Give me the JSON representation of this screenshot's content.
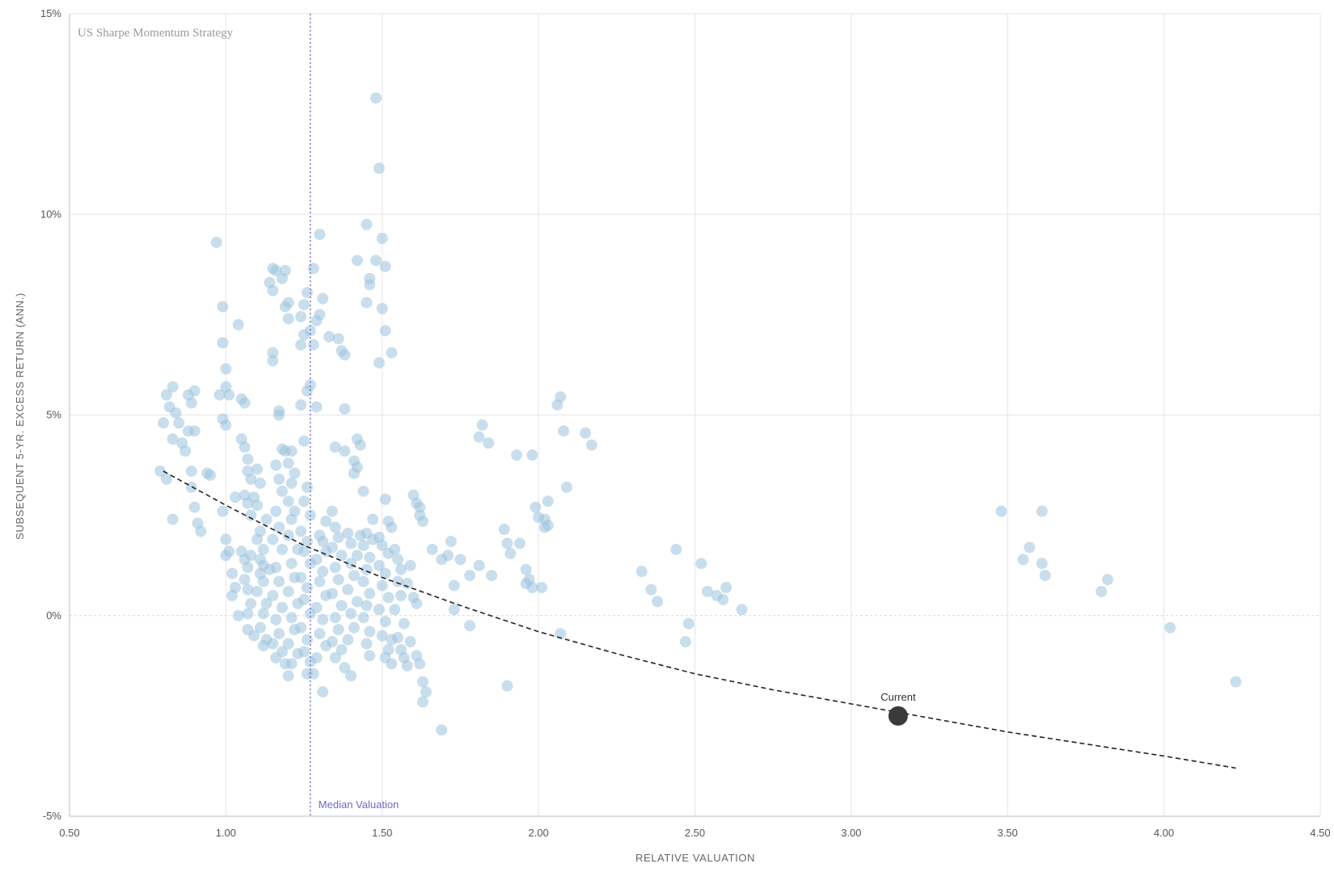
{
  "chart_data": {
    "type": "scatter",
    "title": "US Sharpe Momentum Strategy",
    "xlabel": "RELATIVE VALUATION",
    "ylabel": "SUBSEQUENT 5-YR. EXCESS RETURN (ANN.)",
    "xlim": [
      0.5,
      4.5
    ],
    "ylim": [
      -5,
      15
    ],
    "x_ticks": [
      "0.50",
      "1.00",
      "1.50",
      "2.00",
      "2.50",
      "3.00",
      "3.50",
      "4.00",
      "4.50"
    ],
    "y_ticks": [
      "-5%",
      "0%",
      "5%",
      "10%",
      "15%"
    ],
    "grid": true,
    "colors": {
      "points": "#9cc3dc",
      "fit_line": "#222222",
      "median_line": "#6f6cc4",
      "current_point": "#3a3a3a",
      "grid": "#e5e5e5",
      "zero_line": "#d9d9d9"
    },
    "median": {
      "label": "Median Valuation",
      "x": 1.27
    },
    "current": {
      "label": "Current",
      "x": 3.15,
      "y": -2.5
    },
    "fit_curve": [
      [
        0.8,
        3.6
      ],
      [
        1.0,
        2.75
      ],
      [
        1.25,
        1.75
      ],
      [
        1.5,
        0.95
      ],
      [
        1.75,
        0.25
      ],
      [
        2.0,
        -0.4
      ],
      [
        2.25,
        -0.95
      ],
      [
        2.5,
        -1.45
      ],
      [
        2.75,
        -1.85
      ],
      [
        3.0,
        -2.2
      ],
      [
        3.25,
        -2.55
      ],
      [
        3.5,
        -2.9
      ],
      [
        3.75,
        -3.2
      ],
      [
        4.0,
        -3.5
      ],
      [
        4.23,
        -3.8
      ]
    ],
    "points": [
      [
        0.79,
        3.6
      ],
      [
        0.81,
        3.4
      ],
      [
        0.8,
        4.8
      ],
      [
        0.81,
        5.5
      ],
      [
        0.82,
        5.2
      ],
      [
        0.83,
        5.7
      ],
      [
        0.84,
        5.05
      ],
      [
        0.83,
        4.4
      ],
      [
        0.85,
        4.8
      ],
      [
        0.86,
        4.3
      ],
      [
        0.87,
        4.1
      ],
      [
        0.88,
        4.6
      ],
      [
        0.88,
        5.5
      ],
      [
        0.89,
        5.3
      ],
      [
        0.9,
        5.6
      ],
      [
        0.9,
        4.6
      ],
      [
        0.89,
        3.6
      ],
      [
        0.89,
        3.2
      ],
      [
        0.9,
        2.7
      ],
      [
        0.91,
        2.3
      ],
      [
        0.92,
        2.1
      ],
      [
        0.83,
        2.4
      ],
      [
        0.94,
        3.55
      ],
      [
        0.95,
        3.5
      ],
      [
        0.97,
        9.3
      ],
      [
        0.99,
        7.7
      ],
      [
        0.99,
        6.8
      ],
      [
        1.0,
        6.15
      ],
      [
        1.0,
        5.7
      ],
      [
        1.01,
        5.5
      ],
      [
        0.98,
        5.5
      ],
      [
        0.99,
        4.9
      ],
      [
        1.0,
        4.75
      ],
      [
        0.99,
        2.6
      ],
      [
        1.0,
        1.9
      ],
      [
        1.01,
        1.6
      ],
      [
        1.0,
        1.5
      ],
      [
        1.02,
        1.05
      ],
      [
        1.03,
        0.7
      ],
      [
        1.02,
        0.5
      ],
      [
        1.04,
        0.0
      ],
      [
        1.04,
        7.25
      ],
      [
        1.03,
        2.95
      ],
      [
        1.05,
        5.4
      ],
      [
        1.06,
        5.3
      ],
      [
        1.05,
        4.4
      ],
      [
        1.06,
        4.2
      ],
      [
        1.07,
        3.9
      ],
      [
        1.07,
        3.6
      ],
      [
        1.08,
        3.4
      ],
      [
        1.06,
        3.0
      ],
      [
        1.07,
        2.8
      ],
      [
        1.08,
        2.5
      ],
      [
        1.05,
        1.6
      ],
      [
        1.06,
        1.4
      ],
      [
        1.07,
        1.2
      ],
      [
        1.06,
        0.9
      ],
      [
        1.07,
        0.65
      ],
      [
        1.08,
        0.3
      ],
      [
        1.07,
        0.05
      ],
      [
        1.07,
        -0.35
      ],
      [
        1.09,
        -0.5
      ],
      [
        1.08,
        1.5
      ],
      [
        1.09,
        2.95
      ],
      [
        1.1,
        3.65
      ],
      [
        1.11,
        3.3
      ],
      [
        1.1,
        2.75
      ],
      [
        1.11,
        2.1
      ],
      [
        1.1,
        1.9
      ],
      [
        1.12,
        1.65
      ],
      [
        1.11,
        1.4
      ],
      [
        1.12,
        1.25
      ],
      [
        1.11,
        1.05
      ],
      [
        1.12,
        0.85
      ],
      [
        1.1,
        0.6
      ],
      [
        1.13,
        0.3
      ],
      [
        1.12,
        0.05
      ],
      [
        1.11,
        -0.3
      ],
      [
        1.13,
        -0.6
      ],
      [
        1.12,
        -0.75
      ],
      [
        1.14,
        1.15
      ],
      [
        1.13,
        2.4
      ],
      [
        1.14,
        8.3
      ],
      [
        1.15,
        8.1
      ],
      [
        1.15,
        8.65
      ],
      [
        1.16,
        8.6
      ],
      [
        1.15,
        6.55
      ],
      [
        1.15,
        6.35
      ],
      [
        1.17,
        5.1
      ],
      [
        1.17,
        5.0
      ],
      [
        1.16,
        3.75
      ],
      [
        1.18,
        4.15
      ],
      [
        1.19,
        4.1
      ],
      [
        1.17,
        3.4
      ],
      [
        1.18,
        3.1
      ],
      [
        1.16,
        2.6
      ],
      [
        1.17,
        2.2
      ],
      [
        1.15,
        1.9
      ],
      [
        1.18,
        1.65
      ],
      [
        1.16,
        1.2
      ],
      [
        1.17,
        0.85
      ],
      [
        1.15,
        0.5
      ],
      [
        1.18,
        0.2
      ],
      [
        1.16,
        -0.1
      ],
      [
        1.17,
        -0.45
      ],
      [
        1.15,
        -0.7
      ],
      [
        1.18,
        -0.9
      ],
      [
        1.16,
        -1.05
      ],
      [
        1.19,
        -1.2
      ],
      [
        1.18,
        8.4
      ],
      [
        1.19,
        8.6
      ],
      [
        1.2,
        7.8
      ],
      [
        1.19,
        7.7
      ],
      [
        1.2,
        7.4
      ],
      [
        1.21,
        4.1
      ],
      [
        1.2,
        3.8
      ],
      [
        1.22,
        3.55
      ],
      [
        1.21,
        3.3
      ],
      [
        1.2,
        2.85
      ],
      [
        1.22,
        2.6
      ],
      [
        1.21,
        2.4
      ],
      [
        1.2,
        2.0
      ],
      [
        1.23,
        1.65
      ],
      [
        1.21,
        1.3
      ],
      [
        1.22,
        0.95
      ],
      [
        1.2,
        0.6
      ],
      [
        1.23,
        0.3
      ],
      [
        1.21,
        -0.05
      ],
      [
        1.22,
        -0.35
      ],
      [
        1.2,
        -0.7
      ],
      [
        1.23,
        -0.95
      ],
      [
        1.21,
        -1.2
      ],
      [
        1.2,
        -1.5
      ],
      [
        1.24,
        7.45
      ],
      [
        1.25,
        7.0
      ],
      [
        1.24,
        6.75
      ],
      [
        1.26,
        8.05
      ],
      [
        1.25,
        7.75
      ],
      [
        1.26,
        5.6
      ],
      [
        1.27,
        5.75
      ],
      [
        1.24,
        5.25
      ],
      [
        1.25,
        4.35
      ],
      [
        1.26,
        3.2
      ],
      [
        1.25,
        2.85
      ],
      [
        1.27,
        2.5
      ],
      [
        1.24,
        2.1
      ],
      [
        1.26,
        1.85
      ],
      [
        1.25,
        1.6
      ],
      [
        1.27,
        1.3
      ],
      [
        1.24,
        0.95
      ],
      [
        1.26,
        0.7
      ],
      [
        1.25,
        0.4
      ],
      [
        1.27,
        0.05
      ],
      [
        1.24,
        -0.3
      ],
      [
        1.26,
        -0.6
      ],
      [
        1.25,
        -0.9
      ],
      [
        1.27,
        -1.15
      ],
      [
        1.26,
        -1.45
      ],
      [
        1.27,
        7.1
      ],
      [
        1.28,
        6.75
      ],
      [
        1.28,
        8.65
      ],
      [
        1.3,
        9.5
      ],
      [
        1.29,
        7.35
      ],
      [
        1.3,
        7.5
      ],
      [
        1.31,
        7.9
      ],
      [
        1.29,
        5.2
      ],
      [
        1.3,
        2.0
      ],
      [
        1.31,
        1.85
      ],
      [
        1.32,
        1.6
      ],
      [
        1.29,
        1.4
      ],
      [
        1.31,
        1.1
      ],
      [
        1.3,
        0.85
      ],
      [
        1.32,
        0.5
      ],
      [
        1.29,
        0.2
      ],
      [
        1.31,
        -0.1
      ],
      [
        1.3,
        -0.45
      ],
      [
        1.32,
        -0.75
      ],
      [
        1.29,
        -1.05
      ],
      [
        1.28,
        -1.45
      ],
      [
        1.31,
        -1.9
      ],
      [
        1.32,
        2.35
      ],
      [
        1.33,
        6.95
      ],
      [
        1.34,
        2.6
      ],
      [
        1.35,
        4.2
      ],
      [
        1.35,
        2.2
      ],
      [
        1.36,
        1.95
      ],
      [
        1.34,
        1.7
      ],
      [
        1.37,
        1.5
      ],
      [
        1.35,
        1.2
      ],
      [
        1.36,
        0.9
      ],
      [
        1.34,
        0.55
      ],
      [
        1.37,
        0.25
      ],
      [
        1.35,
        -0.05
      ],
      [
        1.36,
        -0.35
      ],
      [
        1.34,
        -0.65
      ],
      [
        1.37,
        -0.85
      ],
      [
        1.35,
        -1.05
      ],
      [
        1.36,
        6.9
      ],
      [
        1.37,
        6.6
      ],
      [
        1.38,
        6.5
      ],
      [
        1.38,
        5.15
      ],
      [
        1.38,
        4.1
      ],
      [
        1.39,
        2.05
      ],
      [
        1.4,
        1.8
      ],
      [
        1.41,
        3.85
      ],
      [
        1.42,
        3.7
      ],
      [
        1.41,
        3.55
      ],
      [
        1.42,
        4.4
      ],
      [
        1.43,
        4.25
      ],
      [
        1.4,
        1.3
      ],
      [
        1.41,
        1.0
      ],
      [
        1.39,
        0.65
      ],
      [
        1.42,
        0.35
      ],
      [
        1.4,
        0.05
      ],
      [
        1.41,
        -0.3
      ],
      [
        1.39,
        -0.6
      ],
      [
        1.38,
        -1.3
      ],
      [
        1.4,
        -1.5
      ],
      [
        1.42,
        8.85
      ],
      [
        1.43,
        2.0
      ],
      [
        1.42,
        1.5
      ],
      [
        1.44,
        3.1
      ],
      [
        1.45,
        2.05
      ],
      [
        1.44,
        1.75
      ],
      [
        1.46,
        1.45
      ],
      [
        1.45,
        1.15
      ],
      [
        1.44,
        0.85
      ],
      [
        1.46,
        0.55
      ],
      [
        1.45,
        0.25
      ],
      [
        1.44,
        -0.05
      ],
      [
        1.46,
        -0.4
      ],
      [
        1.45,
        -0.7
      ],
      [
        1.46,
        -1.0
      ],
      [
        1.45,
        9.75
      ],
      [
        1.46,
        8.4
      ],
      [
        1.46,
        8.25
      ],
      [
        1.45,
        7.8
      ],
      [
        1.47,
        2.4
      ],
      [
        1.47,
        1.9
      ],
      [
        1.48,
        12.9
      ],
      [
        1.49,
        11.15
      ],
      [
        1.48,
        8.85
      ],
      [
        1.5,
        9.4
      ],
      [
        1.51,
        8.7
      ],
      [
        1.5,
        7.65
      ],
      [
        1.51,
        7.1
      ],
      [
        1.49,
        6.3
      ],
      [
        1.53,
        6.55
      ],
      [
        1.51,
        2.9
      ],
      [
        1.52,
        2.35
      ],
      [
        1.53,
        2.2
      ],
      [
        1.49,
        1.95
      ],
      [
        1.5,
        1.75
      ],
      [
        1.52,
        1.55
      ],
      [
        1.49,
        1.25
      ],
      [
        1.51,
        1.05
      ],
      [
        1.5,
        0.75
      ],
      [
        1.52,
        0.45
      ],
      [
        1.49,
        0.15
      ],
      [
        1.51,
        -0.15
      ],
      [
        1.5,
        -0.5
      ],
      [
        1.53,
        -0.6
      ],
      [
        1.52,
        -0.85
      ],
      [
        1.51,
        -1.05
      ],
      [
        1.53,
        -1.2
      ],
      [
        1.54,
        1.65
      ],
      [
        1.55,
        1.4
      ],
      [
        1.56,
        1.15
      ],
      [
        1.55,
        0.85
      ],
      [
        1.56,
        0.5
      ],
      [
        1.54,
        0.15
      ],
      [
        1.57,
        -0.2
      ],
      [
        1.55,
        -0.55
      ],
      [
        1.56,
        -0.85
      ],
      [
        1.57,
        -1.05
      ],
      [
        1.58,
        -1.25
      ],
      [
        1.59,
        -0.65
      ],
      [
        1.58,
        0.8
      ],
      [
        1.59,
        1.25
      ],
      [
        1.6,
        3.0
      ],
      [
        1.61,
        2.8
      ],
      [
        1.62,
        2.7
      ],
      [
        1.63,
        2.35
      ],
      [
        1.62,
        2.5
      ],
      [
        1.61,
        0.3
      ],
      [
        1.6,
        0.45
      ],
      [
        1.61,
        -1.0
      ],
      [
        1.62,
        -1.2
      ],
      [
        1.63,
        -1.65
      ],
      [
        1.64,
        -1.9
      ],
      [
        1.63,
        -2.15
      ],
      [
        1.66,
        1.65
      ],
      [
        1.69,
        1.4
      ],
      [
        1.71,
        1.5
      ],
      [
        1.72,
        1.85
      ],
      [
        1.73,
        0.15
      ],
      [
        1.73,
        0.75
      ],
      [
        1.75,
        1.4
      ],
      [
        1.69,
        -2.85
      ],
      [
        1.78,
        -0.25
      ],
      [
        1.78,
        1.0
      ],
      [
        1.81,
        1.25
      ],
      [
        1.81,
        4.45
      ],
      [
        1.82,
        4.75
      ],
      [
        1.84,
        4.3
      ],
      [
        1.85,
        1.0
      ],
      [
        1.89,
        2.15
      ],
      [
        1.9,
        1.8
      ],
      [
        1.91,
        1.55
      ],
      [
        1.93,
        4.0
      ],
      [
        1.94,
        1.8
      ],
      [
        1.96,
        1.15
      ],
      [
        1.96,
        0.8
      ],
      [
        1.97,
        0.9
      ],
      [
        1.98,
        0.7
      ],
      [
        1.98,
        4.0
      ],
      [
        1.99,
        2.7
      ],
      [
        2.0,
        2.45
      ],
      [
        2.01,
        0.7
      ],
      [
        2.02,
        2.4
      ],
      [
        2.02,
        2.2
      ],
      [
        2.03,
        2.85
      ],
      [
        2.03,
        2.25
      ],
      [
        2.06,
        5.25
      ],
      [
        2.07,
        5.45
      ],
      [
        2.08,
        4.6
      ],
      [
        2.07,
        -0.45
      ],
      [
        2.09,
        3.2
      ],
      [
        2.15,
        4.55
      ],
      [
        2.17,
        4.25
      ],
      [
        1.9,
        -1.75
      ],
      [
        2.33,
        1.1
      ],
      [
        2.36,
        0.65
      ],
      [
        2.38,
        0.35
      ],
      [
        2.44,
        1.65
      ],
      [
        2.47,
        -0.65
      ],
      [
        2.48,
        -0.2
      ],
      [
        2.52,
        1.3
      ],
      [
        2.54,
        0.6
      ],
      [
        2.57,
        0.5
      ],
      [
        2.59,
        0.4
      ],
      [
        2.6,
        0.7
      ],
      [
        2.65,
        0.15
      ],
      [
        3.48,
        2.6
      ],
      [
        3.55,
        1.4
      ],
      [
        3.57,
        1.7
      ],
      [
        3.61,
        2.6
      ],
      [
        3.61,
        1.3
      ],
      [
        3.62,
        1.0
      ],
      [
        3.8,
        0.6
      ],
      [
        3.82,
        0.9
      ],
      [
        4.02,
        -0.3
      ],
      [
        4.23,
        -1.65
      ]
    ]
  }
}
